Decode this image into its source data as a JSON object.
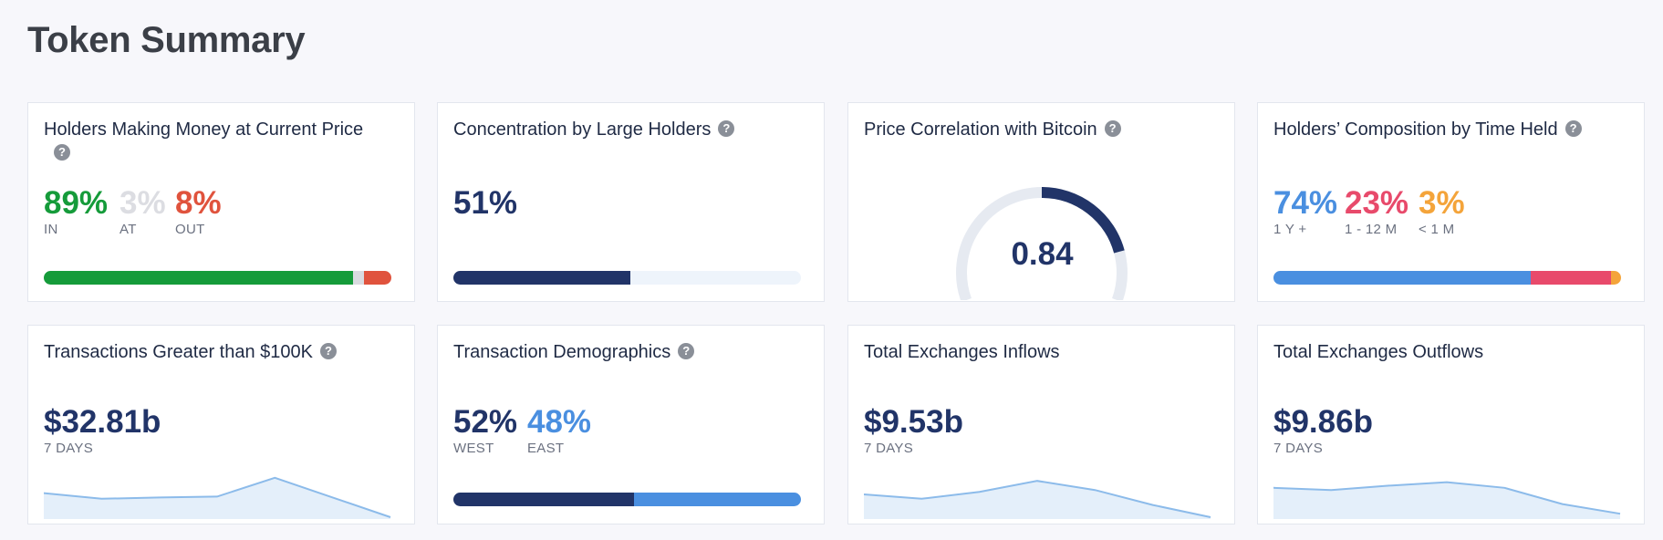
{
  "page_title": "Token Summary",
  "colors": {
    "green": "#159b3a",
    "gray": "#d9dbe0",
    "red": "#e0533d",
    "navy": "#213468",
    "light_blue_bg": "#eef4fb",
    "blue": "#4a8fe0",
    "pink": "#e84a6b",
    "orange": "#f4a43a",
    "spark_line": "#8cbbea",
    "spark_fill": "#e4effa"
  },
  "cards": {
    "holders_money": {
      "title": "Holders Making Money at Current Price",
      "in": {
        "value": "89%",
        "label": "IN",
        "fraction": 0.89
      },
      "at": {
        "value": "3%",
        "label": "AT",
        "fraction": 0.03
      },
      "out": {
        "value": "8%",
        "label": "OUT",
        "fraction": 0.08
      }
    },
    "concentration": {
      "title": "Concentration by Large Holders",
      "value": "51%",
      "fraction": 0.51
    },
    "correlation": {
      "title": "Price Correlation with Bitcoin",
      "value": "0.84",
      "fraction": 0.84
    },
    "composition": {
      "title": "Holders’ Composition by Time Held",
      "long": {
        "value": "74%",
        "label": "1 Y +",
        "fraction": 0.74
      },
      "mid": {
        "value": "23%",
        "label": "1 - 12 M",
        "fraction": 0.23
      },
      "short": {
        "value": "3%",
        "label": "< 1 M",
        "fraction": 0.03
      }
    },
    "large_tx": {
      "title": "Transactions Greater than $100K",
      "value": "$32.81b",
      "period": "7 DAYS",
      "trend": [
        0.55,
        0.42,
        0.45,
        0.47,
        0.9,
        0.45,
        0.0
      ]
    },
    "demographics": {
      "title": "Transaction Demographics",
      "west": {
        "value": "52%",
        "label": "WEST",
        "fraction": 0.52
      },
      "east": {
        "value": "48%",
        "label": "EAST",
        "fraction": 0.48
      }
    },
    "inflows": {
      "title": "Total Exchanges Inflows",
      "value": "$9.53b",
      "period": "7 DAYS",
      "trend": [
        0.52,
        0.42,
        0.58,
        0.83,
        0.62,
        0.28,
        0.0
      ]
    },
    "outflows": {
      "title": "Total Exchanges Outflows",
      "value": "$9.86b",
      "period": "7 DAYS",
      "trend": [
        0.67,
        0.62,
        0.72,
        0.8,
        0.67,
        0.3,
        0.08
      ]
    }
  }
}
